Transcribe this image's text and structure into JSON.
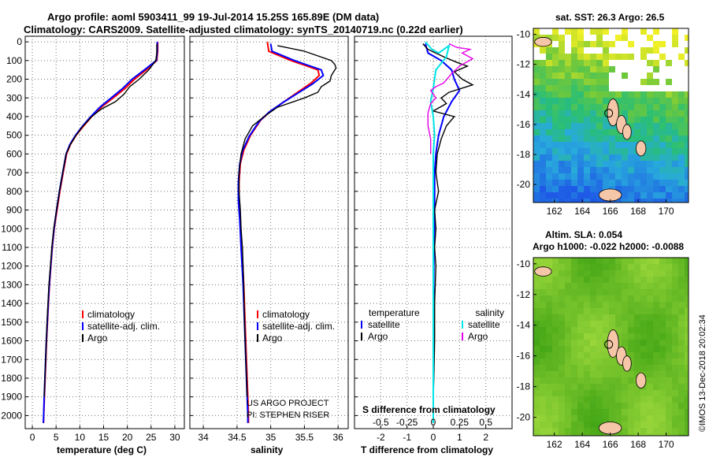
{
  "header": {
    "title_line1": "Argo profile: aoml 5903411_99 19-Jul-2014 15.25S 165.89E (DM data)",
    "title_line2": "Climatology: CARS2009. Satellite-adjusted climatology: synTS_20140719.nc (0.22d earlier)"
  },
  "colors": {
    "climatology": "#ff0000",
    "satellite": "#0000ff",
    "argo": "#000000",
    "salinity_satellite": "#00e5e5",
    "salinity_argo": "#e600e6",
    "land": "#f5c6a8"
  },
  "credits": {
    "project": "US ARGO PROJECT",
    "pi": "PI: STEPHEN RISER",
    "imos": "©IMOS 13-Dec-2018 20:02:34"
  },
  "depth_axis": {
    "ticks": [
      0,
      100,
      200,
      300,
      400,
      500,
      600,
      700,
      800,
      900,
      1000,
      1100,
      1200,
      1300,
      1400,
      1500,
      1600,
      1700,
      1800,
      1900,
      2000
    ]
  },
  "chart_data": [
    {
      "type": "line",
      "id": "temperature",
      "xlabel": "temperature (deg C)",
      "xlim": [
        -1.5,
        32
      ],
      "xticks": [
        0,
        5,
        10,
        15,
        20,
        25,
        30
      ],
      "ylim": [
        2070,
        -30
      ],
      "legend": [
        "climatology",
        "satellite-adj. clim.",
        "Argo"
      ],
      "series": [
        {
          "name": "climatology",
          "color": "#ff0000",
          "points": [
            [
              26.4,
              0
            ],
            [
              26.4,
              50
            ],
            [
              26.2,
              100
            ],
            [
              24,
              150
            ],
            [
              21.5,
              200
            ],
            [
              19.5,
              250
            ],
            [
              17,
              300
            ],
            [
              14.5,
              350
            ],
            [
              12.5,
              400
            ],
            [
              10.8,
              450
            ],
            [
              9.2,
              500
            ],
            [
              8.0,
              550
            ],
            [
              7.2,
              600
            ],
            [
              6.5,
              700
            ],
            [
              5.8,
              800
            ],
            [
              5.2,
              900
            ],
            [
              4.6,
              1000
            ],
            [
              4.2,
              1100
            ],
            [
              3.9,
              1200
            ],
            [
              3.6,
              1300
            ],
            [
              3.4,
              1400
            ],
            [
              3.2,
              1500
            ],
            [
              3.0,
              1600
            ],
            [
              2.85,
              1700
            ],
            [
              2.7,
              1800
            ],
            [
              2.55,
              1900
            ],
            [
              2.4,
              2000
            ],
            [
              2.35,
              2040
            ]
          ]
        },
        {
          "name": "satellite-adj. clim.",
          "color": "#0000ff",
          "points": [
            [
              26.3,
              0
            ],
            [
              26.3,
              50
            ],
            [
              26.1,
              100
            ],
            [
              23.6,
              150
            ],
            [
              21.0,
              200
            ],
            [
              19.0,
              250
            ],
            [
              16.6,
              300
            ],
            [
              14.2,
              350
            ],
            [
              12.3,
              400
            ],
            [
              10.6,
              450
            ],
            [
              9.1,
              500
            ],
            [
              7.9,
              550
            ],
            [
              7.1,
              600
            ],
            [
              6.4,
              700
            ],
            [
              5.7,
              800
            ],
            [
              5.1,
              900
            ],
            [
              4.55,
              1000
            ],
            [
              4.15,
              1100
            ],
            [
              3.85,
              1200
            ],
            [
              3.55,
              1300
            ],
            [
              3.35,
              1400
            ],
            [
              3.15,
              1500
            ],
            [
              2.95,
              1600
            ],
            [
              2.8,
              1700
            ],
            [
              2.65,
              1800
            ],
            [
              2.5,
              1900
            ],
            [
              2.38,
              2000
            ],
            [
              2.33,
              2040
            ]
          ]
        },
        {
          "name": "Argo",
          "color": "#000000",
          "points": [
            [
              26.2,
              10
            ],
            [
              26.2,
              60
            ],
            [
              26.0,
              100
            ],
            [
              24.5,
              150
            ],
            [
              22.5,
              200
            ],
            [
              20.5,
              240
            ],
            [
              19.3,
              280
            ],
            [
              17.5,
              320
            ],
            [
              14.5,
              360
            ],
            [
              12.5,
              400
            ],
            [
              10.7,
              450
            ],
            [
              9.2,
              500
            ],
            [
              8.0,
              550
            ],
            [
              7.1,
              600
            ],
            [
              6.4,
              700
            ],
            [
              5.7,
              800
            ],
            [
              5.1,
              900
            ],
            [
              4.5,
              1000
            ],
            [
              4.1,
              1100
            ],
            [
              3.8,
              1200
            ],
            [
              3.5,
              1300
            ],
            [
              3.3,
              1400
            ],
            [
              3.1,
              1500
            ],
            [
              2.95,
              1600
            ],
            [
              2.8,
              1700
            ],
            [
              2.65,
              1800
            ],
            [
              2.5,
              1900
            ]
          ]
        }
      ]
    },
    {
      "type": "line",
      "id": "salinity",
      "xlabel": "salinity",
      "xlim": [
        33.8,
        36.15
      ],
      "xticks": [
        34,
        34.5,
        35,
        35.5,
        36
      ],
      "ylim": [
        2070,
        -30
      ],
      "legend": [
        "climatology",
        "satellite-adj. clim.",
        "Argo"
      ],
      "series": [
        {
          "name": "climatology",
          "color": "#ff0000",
          "points": [
            [
              34.95,
              0
            ],
            [
              34.97,
              50
            ],
            [
              35.3,
              100
            ],
            [
              35.7,
              150
            ],
            [
              35.72,
              180
            ],
            [
              35.6,
              220
            ],
            [
              35.4,
              270
            ],
            [
              35.2,
              320
            ],
            [
              35.0,
              370
            ],
            [
              34.85,
              420
            ],
            [
              34.7,
              500
            ],
            [
              34.6,
              580
            ],
            [
              34.55,
              650
            ],
            [
              34.53,
              750
            ],
            [
              34.53,
              850
            ],
            [
              34.55,
              950
            ],
            [
              34.57,
              1100
            ],
            [
              34.6,
              1300
            ],
            [
              34.62,
              1500
            ],
            [
              34.64,
              1700
            ],
            [
              34.66,
              1900
            ],
            [
              34.67,
              2000
            ],
            [
              34.67,
              2040
            ]
          ]
        },
        {
          "name": "satellite-adj. clim.",
          "color": "#0000ff",
          "points": [
            [
              35.0,
              10
            ],
            [
              35.02,
              50
            ],
            [
              35.35,
              100
            ],
            [
              35.75,
              150
            ],
            [
              35.78,
              180
            ],
            [
              35.62,
              225
            ],
            [
              35.4,
              275
            ],
            [
              35.18,
              325
            ],
            [
              34.98,
              375
            ],
            [
              34.83,
              425
            ],
            [
              34.68,
              505
            ],
            [
              34.58,
              585
            ],
            [
              34.54,
              655
            ],
            [
              34.52,
              750
            ],
            [
              34.52,
              850
            ],
            [
              34.54,
              950
            ],
            [
              34.56,
              1100
            ],
            [
              34.59,
              1300
            ],
            [
              34.61,
              1500
            ],
            [
              34.63,
              1700
            ],
            [
              34.65,
              1900
            ],
            [
              34.66,
              2000
            ],
            [
              34.66,
              2040
            ]
          ]
        },
        {
          "name": "Argo",
          "color": "#000000",
          "points": [
            [
              35.1,
              20
            ],
            [
              35.5,
              50
            ],
            [
              35.9,
              100
            ],
            [
              35.95,
              120
            ],
            [
              35.97,
              140
            ],
            [
              35.9,
              180
            ],
            [
              35.88,
              210
            ],
            [
              35.75,
              240
            ],
            [
              35.7,
              270
            ],
            [
              35.5,
              300
            ],
            [
              35.1,
              350
            ],
            [
              34.9,
              400
            ],
            [
              34.73,
              450
            ],
            [
              34.62,
              520
            ],
            [
              34.56,
              600
            ],
            [
              34.53,
              700
            ],
            [
              34.53,
              800
            ],
            [
              34.55,
              900
            ],
            [
              34.56,
              1000
            ],
            [
              34.58,
              1100
            ],
            [
              34.6,
              1300
            ],
            [
              34.61,
              1500
            ],
            [
              34.63,
              1700
            ],
            [
              34.65,
              1900
            ]
          ]
        }
      ]
    },
    {
      "type": "line",
      "id": "difference",
      "xlabel": "T difference from climatology",
      "xlabel2": "S difference from climatology",
      "xlim": [
        -3,
        3
      ],
      "xticks": [
        -2,
        -1,
        0,
        1,
        2
      ],
      "s_xticks": [
        "-0.5",
        "-0.25",
        "0",
        "0.25",
        "0.5"
      ],
      "ylim": [
        2070,
        -30
      ],
      "legend_left_header": "temperature",
      "legend_right_header": "salinity",
      "legend_left": [
        "satellite",
        "Argo"
      ],
      "legend_right": [
        "satellite",
        "Argo"
      ],
      "series": [
        {
          "name": "satellite",
          "color": "#0000ff",
          "points": [
            [
              -0.3,
              10
            ],
            [
              -0.2,
              60
            ],
            [
              0.3,
              100
            ],
            [
              0.7,
              150
            ],
            [
              0.8,
              200
            ],
            [
              1.0,
              260
            ],
            [
              0.7,
              320
            ],
            [
              0.4,
              400
            ],
            [
              0.2,
              500
            ],
            [
              0.1,
              600
            ],
            [
              0.05,
              700
            ],
            [
              0.05,
              900
            ],
            [
              0.02,
              1200
            ],
            [
              0.0,
              1600
            ],
            [
              0.0,
              2000
            ],
            [
              0.0,
              2040
            ]
          ]
        },
        {
          "name": "Argo",
          "color": "#000000",
          "points": [
            [
              -0.4,
              10
            ],
            [
              -0.2,
              40
            ],
            [
              0.4,
              80
            ],
            [
              0.9,
              110
            ],
            [
              1.3,
              130
            ],
            [
              0.8,
              160
            ],
            [
              1.1,
              200
            ],
            [
              1.5,
              230
            ],
            [
              0.6,
              270
            ],
            [
              0.3,
              300
            ],
            [
              0.5,
              330
            ],
            [
              0.0,
              370
            ],
            [
              0.8,
              400
            ],
            [
              0.5,
              450
            ],
            [
              0.3,
              520
            ],
            [
              0.15,
              600
            ],
            [
              0.1,
              700
            ],
            [
              0.2,
              800
            ],
            [
              0.05,
              900
            ],
            [
              0.1,
              1000
            ],
            [
              0.05,
              1100
            ],
            [
              0.1,
              1200
            ],
            [
              0.05,
              1400
            ],
            [
              0.05,
              1600
            ],
            [
              0.02,
              1800
            ],
            [
              0.0,
              1900
            ]
          ]
        },
        {
          "name": "salinity satellite",
          "color": "#00e5e5",
          "points": [
            [
              -0.3,
              0
            ],
            [
              -0.05,
              40
            ],
            [
              0.2,
              60
            ],
            [
              0.6,
              20
            ],
            [
              0.5,
              80
            ],
            [
              0.1,
              150
            ],
            [
              0.0,
              250
            ],
            [
              -0.1,
              320
            ],
            [
              0.0,
              400
            ],
            [
              0.05,
              500
            ],
            [
              0.0,
              600
            ],
            [
              0.0,
              800
            ],
            [
              0.0,
              1200
            ],
            [
              0.0,
              1600
            ],
            [
              0.0,
              2000
            ],
            [
              0.0,
              2040
            ]
          ]
        },
        {
          "name": "salinity Argo",
          "color": "#e600e6",
          "points": [
            [
              0.6,
              10
            ],
            [
              0.9,
              30
            ],
            [
              1.4,
              40
            ],
            [
              1.1,
              60
            ],
            [
              1.5,
              90
            ],
            [
              1.0,
              130
            ],
            [
              0.7,
              170
            ],
            [
              0.4,
              220
            ],
            [
              0.1,
              240
            ],
            [
              -0.1,
              260
            ],
            [
              0.1,
              300
            ],
            [
              -0.1,
              330
            ],
            [
              -0.2,
              380
            ],
            [
              -0.2,
              450
            ],
            [
              -0.1,
              520
            ],
            [
              -0.1,
              600
            ]
          ]
        }
      ]
    },
    {
      "type": "heatmap",
      "id": "sst_map",
      "title": "sat. SST: 26.3  Argo: 26.5",
      "xlim": [
        160.5,
        171.6
      ],
      "ylim": [
        -21.2,
        -9.6
      ],
      "xticks": [
        162,
        164,
        166,
        168,
        170
      ],
      "yticks": [
        -10,
        -12,
        -14,
        -16,
        -18,
        -20
      ]
    },
    {
      "type": "heatmap",
      "id": "sla_map",
      "title": "Altim. SLA: 0.054",
      "subtitle": "Argo h1000: -0.022  h2000: -0.0088",
      "xlim": [
        160.5,
        171.6
      ],
      "ylim": [
        -21.2,
        -9.6
      ],
      "xticks": [
        162,
        164,
        166,
        168,
        170
      ],
      "yticks": [
        -10,
        -12,
        -14,
        -16,
        -18,
        -20
      ]
    }
  ]
}
